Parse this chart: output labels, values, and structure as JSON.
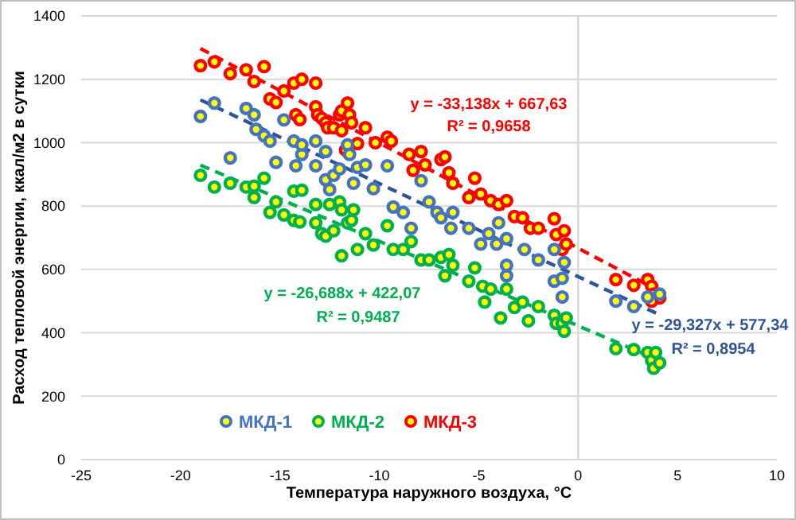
{
  "chart_data": {
    "type": "scatter",
    "xlabel": "Температура наружного воздуха, °С",
    "ylabel": "Расход тепловой энергии, ккал/м2 в сутки",
    "xlim": [
      -25,
      10
    ],
    "xticks": [
      -25,
      -20,
      -15,
      -10,
      -5,
      0,
      5,
      10
    ],
    "ylim": [
      0,
      1400
    ],
    "yticks": [
      0,
      200,
      400,
      600,
      800,
      1000,
      1200,
      1400
    ],
    "grid": "y",
    "legend": "bottom",
    "ref_lines": [
      {
        "axis": "x",
        "value": 0,
        "color": "#d9d9d9"
      }
    ],
    "series": [
      {
        "name": "МКД-1",
        "color": "#4472c4",
        "marker": "circle",
        "x": [
          -19.0,
          -18.3,
          -17.5,
          -16.7,
          -16.3,
          -16.2,
          -15.8,
          -15.5,
          -15.2,
          -14.8,
          -14.3,
          -14.2,
          -13.9,
          -13.9,
          -13.2,
          -13.2,
          -12.7,
          -12.7,
          -12.5,
          -12.3,
          -12.0,
          -11.6,
          -11.5,
          -11.3,
          -11.1,
          -10.7,
          -10.3,
          -9.6,
          -9.3,
          -8.8,
          -8.4,
          -7.9,
          -7.5,
          -7.1,
          -6.9,
          -6.4,
          -6.3,
          -5.5,
          -4.9,
          -4.5,
          -4.1,
          -4.0,
          -3.6,
          -3.6,
          -3.6,
          -2.7,
          -2.0,
          -1.2,
          -1.2,
          -0.8,
          -0.8,
          -0.7,
          1.9,
          2.8,
          3.5,
          4.1
        ],
        "values": [
          1083,
          1125,
          952,
          1108,
          1088,
          1042,
          1022,
          1005,
          938,
          1072,
          1005,
          927,
          963,
          993,
          1005,
          927,
          972,
          883,
          852,
          897,
          917,
          993,
          963,
          872,
          922,
          930,
          855,
          927,
          797,
          780,
          730,
          880,
          813,
          780,
          763,
          730,
          780,
          730,
          680,
          713,
          680,
          747,
          697,
          613,
          580,
          663,
          630,
          663,
          563,
          572,
          513,
          622,
          500,
          483,
          513,
          522
        ]
      },
      {
        "name": "МКД-2",
        "color": "#00b050",
        "marker": "circle",
        "x": [
          -19.0,
          -18.3,
          -17.5,
          -16.7,
          -16.3,
          -16.3,
          -15.8,
          -15.5,
          -15.2,
          -14.8,
          -14.3,
          -13.9,
          -14.3,
          -14.0,
          -13.2,
          -13.2,
          -12.9,
          -12.7,
          -12.5,
          -12.3,
          -12.0,
          -11.9,
          -11.9,
          -11.6,
          -11.3,
          -11.4,
          -11.1,
          -10.7,
          -10.3,
          -9.6,
          -9.3,
          -8.8,
          -8.4,
          -7.9,
          -7.5,
          -6.9,
          -6.5,
          -6.7,
          -6.3,
          -5.5,
          -5.2,
          -4.8,
          -4.4,
          -4.7,
          -3.9,
          -3.6,
          -3.2,
          -2.8,
          -2.5,
          -2.0,
          -1.2,
          -1.1,
          -0.8,
          -0.7,
          -0.6,
          1.9,
          2.8,
          3.5,
          3.7,
          3.8,
          4.1,
          3.9
        ],
        "values": [
          897,
          860,
          872,
          860,
          863,
          827,
          888,
          780,
          813,
          772,
          847,
          850,
          755,
          750,
          805,
          747,
          713,
          705,
          805,
          722,
          813,
          788,
          643,
          747,
          788,
          755,
          663,
          713,
          677,
          738,
          663,
          663,
          688,
          630,
          630,
          638,
          647,
          580,
          613,
          563,
          605,
          547,
          538,
          497,
          447,
          538,
          480,
          497,
          438,
          483,
          455,
          430,
          430,
          405,
          447,
          350,
          347,
          338,
          313,
          288,
          305,
          338
        ]
      },
      {
        "name": "МКД-3",
        "color": "#ff0000",
        "marker": "circle",
        "x": [
          -19.0,
          -18.3,
          -17.5,
          -16.7,
          -16.3,
          -15.8,
          -15.5,
          -15.2,
          -14.8,
          -14.3,
          -13.9,
          -14.2,
          -14.0,
          -13.2,
          -13.2,
          -13.1,
          -12.9,
          -12.7,
          -12.6,
          -12.3,
          -12.0,
          -11.9,
          -11.9,
          -11.6,
          -11.5,
          -11.4,
          -11.7,
          -11.1,
          -10.7,
          -10.2,
          -9.6,
          -9.4,
          -8.5,
          -7.9,
          -8.3,
          -7.7,
          -6.9,
          -6.7,
          -6.5,
          -6.3,
          -5.2,
          -5.5,
          -4.9,
          -4.4,
          -4.0,
          -3.6,
          -3.2,
          -2.8,
          -2.4,
          -2.0,
          -1.2,
          -1.1,
          -0.7,
          -0.8,
          -0.6,
          1.9,
          2.8,
          3.5,
          3.7,
          3.8,
          4.1,
          3.7
        ],
        "values": [
          1243,
          1255,
          1218,
          1230,
          1193,
          1240,
          1138,
          1127,
          1163,
          1188,
          1200,
          1088,
          1073,
          1188,
          1113,
          1088,
          1077,
          1063,
          1047,
          1047,
          1088,
          1038,
          1100,
          1125,
          1088,
          1063,
          977,
          997,
          1047,
          1000,
          1017,
          1005,
          963,
          972,
          913,
          930,
          947,
          955,
          905,
          872,
          888,
          827,
          838,
          817,
          805,
          817,
          767,
          763,
          730,
          730,
          760,
          710,
          722,
          663,
          680,
          568,
          550,
          568,
          547,
          522,
          510,
          500
        ]
      },
      {
        "type": "line",
        "line_style": "dashed",
        "color": "#ff0000",
        "x": [
          -19,
          4.2
        ],
        "values": [
          1297,
          528
        ]
      },
      {
        "type": "line",
        "line_style": "dashed",
        "color": "#2f5597",
        "x": [
          -19,
          4.2
        ],
        "values": [
          1135,
          454
        ]
      },
      {
        "type": "line",
        "line_style": "dashed",
        "color": "#00b050",
        "x": [
          -19,
          4.2
        ],
        "values": [
          929,
          310
        ]
      }
    ],
    "annotations": [
      "y = -33,138x + 667,63",
      "R² = 0,9658",
      "y = -26,688x + 422,07",
      "R² = 0,9487",
      "y = -29,327x + 577,34",
      "R² = 0,8954"
    ]
  }
}
